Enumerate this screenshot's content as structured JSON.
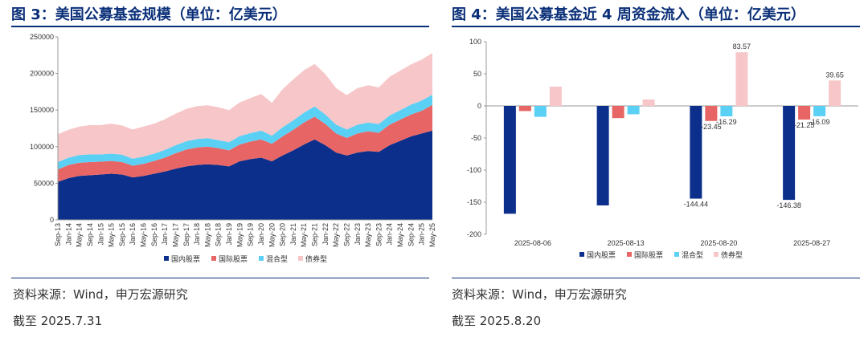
{
  "left": {
    "title": "图 3：美国公募基金规模（单位：亿美元）",
    "source": "资料来源：Wind，申万宏源研究",
    "note": "截至 2025.7.31",
    "chart_data": {
      "type": "area",
      "stacked": true,
      "ylim": [
        0,
        250000
      ],
      "yticks": [
        0,
        50000,
        100000,
        150000,
        200000,
        250000
      ],
      "x_tick_labels": [
        "Sep-13",
        "Jan-14",
        "May-14",
        "Sep-14",
        "Jan-15",
        "May-15",
        "Sep-15",
        "Jan-16",
        "May-16",
        "Sep-16",
        "Jan-17",
        "May-17",
        "Sep-17",
        "Jan-18",
        "May-18",
        "Sep-18",
        "Jan-19",
        "May-19",
        "Sep-19",
        "Jan-20",
        "May-20",
        "Sep-20",
        "Jan-21",
        "May-21",
        "Sep-21",
        "Jan-22",
        "May-22",
        "Sep-22",
        "Jan-23",
        "May-23",
        "Sep-23",
        "Jan-24",
        "May-24",
        "Sep-24",
        "Jan-25",
        "May-25"
      ],
      "series": [
        {
          "name": "国内股票",
          "color": "#0b2f8a",
          "values": [
            52000,
            57000,
            60000,
            61000,
            62000,
            63000,
            62000,
            58000,
            60000,
            63000,
            66000,
            70000,
            73000,
            75000,
            76000,
            75000,
            73000,
            80000,
            83000,
            85000,
            80000,
            88000,
            95000,
            103000,
            110000,
            102000,
            92000,
            88000,
            92000,
            94000,
            93000,
            102000,
            108000,
            114000,
            118000,
            122000
          ]
        },
        {
          "name": "国际股票",
          "color": "#e86565",
          "values": [
            17000,
            18000,
            18000,
            18000,
            17500,
            17500,
            17000,
            16000,
            16500,
            17500,
            19000,
            21000,
            23000,
            24000,
            24000,
            23000,
            22000,
            23000,
            24000,
            25000,
            24000,
            26000,
            28000,
            30000,
            31000,
            29000,
            26000,
            24000,
            26000,
            27000,
            26000,
            28000,
            29000,
            30000,
            31000,
            35000
          ]
        },
        {
          "name": "混合型",
          "color": "#5bd0f5",
          "values": [
            10000,
            10000,
            10500,
            10500,
            10000,
            10000,
            10000,
            9500,
            10000,
            10000,
            10500,
            11000,
            11500,
            11500,
            11500,
            11000,
            11000,
            11500,
            11500,
            12000,
            11000,
            12500,
            13000,
            13500,
            14000,
            13000,
            12000,
            11500,
            12000,
            12000,
            12000,
            12500,
            13000,
            13500,
            14000,
            14000
          ]
        },
        {
          "name": "债券型",
          "color": "#f7c6c8",
          "values": [
            38000,
            38000,
            39000,
            40000,
            40000,
            41000,
            40000,
            40000,
            41000,
            41000,
            42000,
            43000,
            44000,
            45000,
            45000,
            45000,
            44000,
            46000,
            48000,
            50000,
            45000,
            52000,
            56000,
            58000,
            58000,
            55000,
            50000,
            47000,
            50000,
            51000,
            50000,
            53000,
            54000,
            55000,
            56000,
            57000
          ]
        }
      ]
    }
  },
  "right": {
    "title": "图 4：美国公募基金近 4 周资金流入（单位：亿美元）",
    "source": "资料来源：Wind，申万宏源研究",
    "note": "截至 2025.8.20",
    "chart_data": {
      "type": "bar",
      "categories": [
        "2025-08-06",
        "2025-08-13",
        "2025-08-20",
        "2025-08-27"
      ],
      "ylim": [
        -200,
        100
      ],
      "yticks": [
        100,
        50,
        0,
        -50,
        -100,
        -150,
        -200
      ],
      "series": [
        {
          "name": "国内股票",
          "color": "#0b2f8a",
          "values": [
            -168,
            -155,
            -144.44,
            -146.38
          ],
          "labels": [
            "",
            "",
            "-144.44",
            "-146.38"
          ]
        },
        {
          "name": "国际股票",
          "color": "#e86565",
          "values": [
            -8,
            -19,
            -23.45,
            -21.25
          ],
          "labels": [
            "",
            "",
            "-23.45",
            "-21.25"
          ]
        },
        {
          "name": "混合型",
          "color": "#5bd0f5",
          "values": [
            -17,
            -13,
            -16.29,
            -16.09
          ],
          "labels": [
            "",
            "",
            "-16.29",
            "-16.09"
          ]
        },
        {
          "name": "债券型",
          "color": "#f7c6c8",
          "values": [
            30,
            10,
            83.57,
            39.65
          ],
          "labels": [
            "",
            "",
            "83.57",
            "39.65"
          ]
        }
      ]
    }
  }
}
